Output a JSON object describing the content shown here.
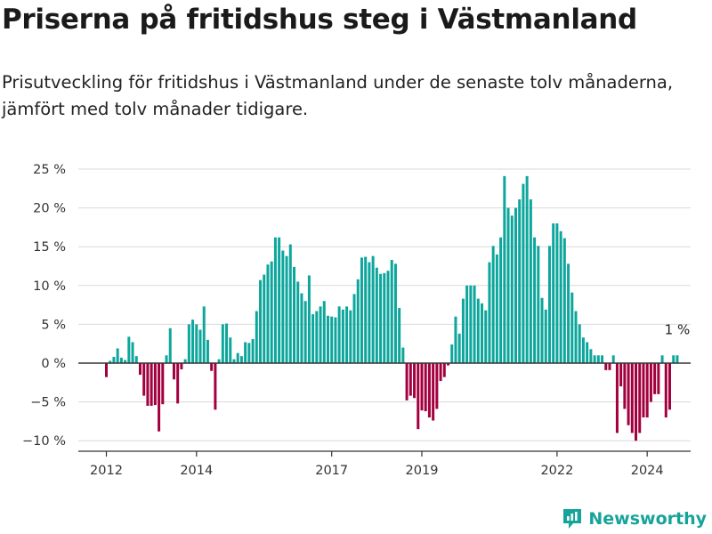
{
  "header": {
    "title": "Priserna på fritidshus steg i Västmanland",
    "subtitle": "Prisutveckling för fritidshus i Västmanland under de senaste tolv månaderna, jämfört med tolv månader tidigare."
  },
  "brand": {
    "name": "Newsworthy",
    "icon": "newsworthy-logo-icon"
  },
  "colors": {
    "positive": "#0da69c",
    "negative": "#a3003f",
    "grid": "#d9d9d9",
    "axis": "#333333"
  },
  "chart_data": {
    "type": "bar",
    "title": "Priserna på fritidshus steg i Västmanland",
    "xlabel": "",
    "ylabel": "",
    "ylim": [
      -11,
      25
    ],
    "yticks": [
      -10,
      -5,
      0,
      5,
      10,
      15,
      20,
      25
    ],
    "ytick_labels": [
      "−10 %",
      "−5 %",
      "0 %",
      "5 %",
      "10 %",
      "15 %",
      "20 %",
      "25 %"
    ],
    "xticks": [
      "2012",
      "2014",
      "2017",
      "2019",
      "2022",
      "2024"
    ],
    "grid": true,
    "annotation": "1 %",
    "start": "2012-01",
    "frequency": "monthly",
    "values": [
      -1.8,
      0.3,
      0.8,
      1.9,
      0.7,
      0.4,
      3.4,
      2.7,
      0.9,
      -1.5,
      -4.2,
      -5.5,
      -5.5,
      -5.4,
      -8.8,
      -5.3,
      1.0,
      4.5,
      -2.1,
      -5.2,
      -0.8,
      0.5,
      5.0,
      5.6,
      5.0,
      4.3,
      7.3,
      3.0,
      -1.0,
      -6.0,
      0.5,
      5.0,
      5.1,
      3.3,
      0.5,
      1.3,
      0.9,
      2.7,
      2.6,
      3.1,
      6.7,
      10.7,
      11.4,
      12.7,
      13.1,
      16.2,
      16.2,
      14.5,
      13.8,
      15.3,
      12.4,
      10.5,
      9.0,
      8.0,
      11.3,
      6.3,
      6.7,
      7.3,
      8.0,
      6.1,
      6.0,
      5.9,
      7.3,
      6.9,
      7.3,
      6.8,
      8.9,
      10.8,
      13.6,
      13.7,
      13.0,
      13.8,
      12.3,
      11.5,
      11.6,
      11.9,
      13.3,
      12.8,
      7.1,
      2.0,
      -4.8,
      -4.2,
      -4.5,
      -8.5,
      -6.1,
      -6.2,
      -7.0,
      -7.4,
      -5.9,
      -2.3,
      -1.8,
      -0.3,
      2.4,
      6.0,
      3.8,
      8.3,
      10.0,
      10.0,
      10.0,
      8.3,
      7.7,
      6.8,
      13.0,
      15.1,
      14.0,
      16.2,
      24.1,
      20.0,
      19.0,
      20.0,
      21.1,
      23.1,
      24.1,
      21.1,
      16.2,
      15.1,
      8.4,
      6.9,
      15.1,
      18.0,
      18.0,
      17.0,
      16.1,
      12.8,
      9.1,
      6.7,
      5.0,
      3.3,
      2.7,
      1.8,
      1.0,
      1.0,
      1.0,
      -0.9,
      -0.9,
      1.0,
      -9.0,
      -3.0,
      -5.9,
      -8.0,
      -9.0,
      -10.0,
      -9.0,
      -7.0,
      -7.0,
      -5.0,
      -4.0,
      -4.0,
      1.0,
      -7.0,
      -6.0,
      1.0,
      1.0
    ]
  }
}
